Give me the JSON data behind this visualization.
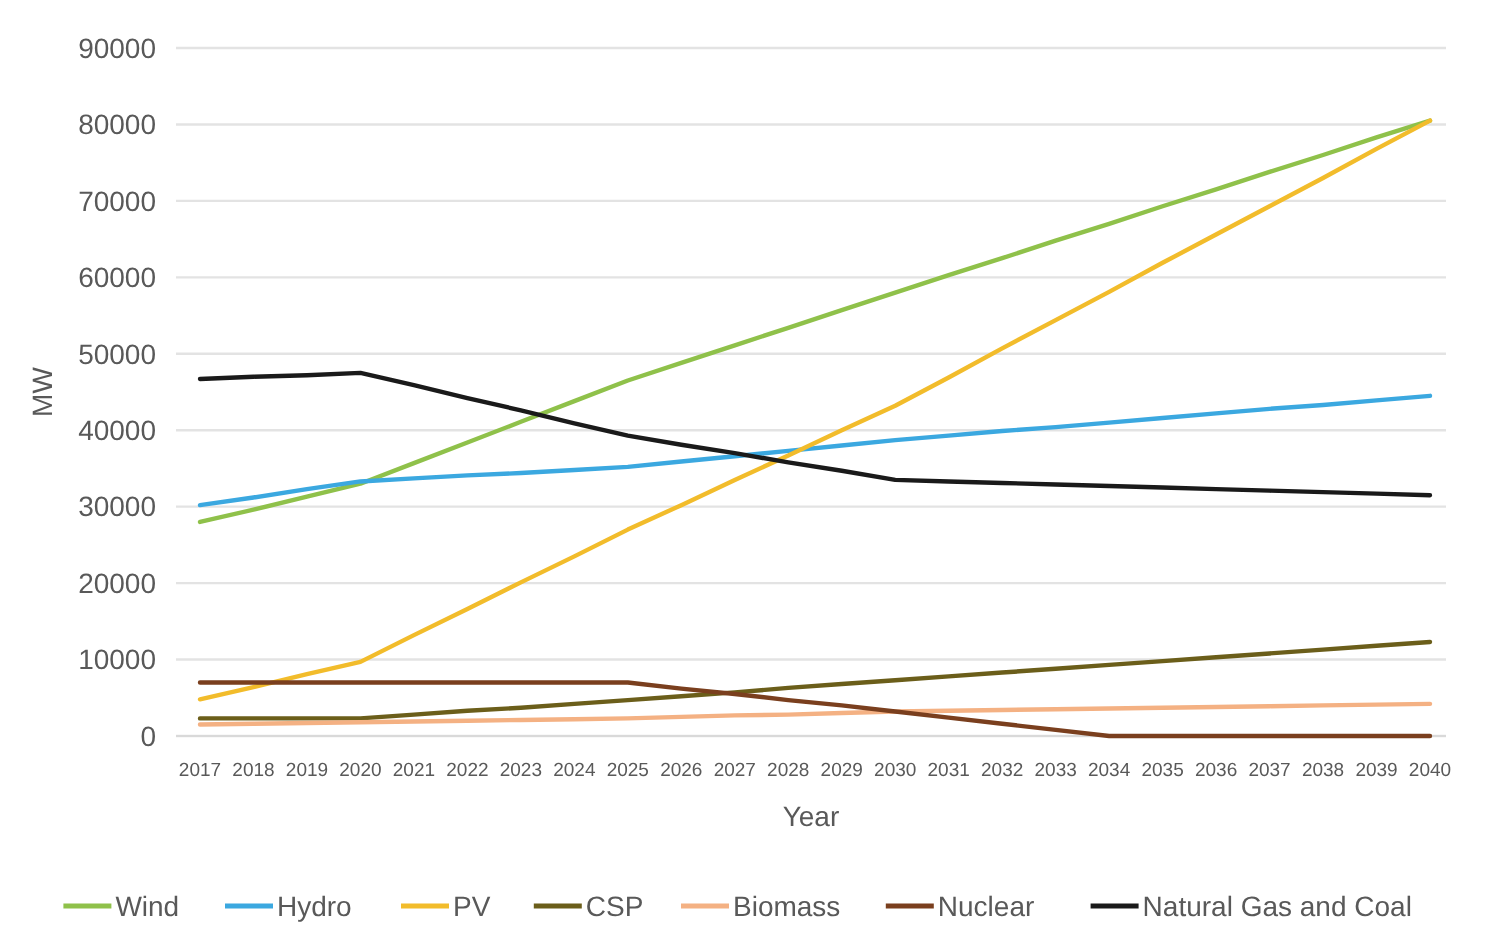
{
  "chart_data": {
    "type": "line",
    "xlabel": "Year",
    "ylabel": "MW",
    "categories": [
      "2017",
      "2018",
      "2019",
      "2020",
      "2021",
      "2022",
      "2023",
      "2024",
      "2025",
      "2026",
      "2027",
      "2028",
      "2029",
      "2030",
      "2031",
      "2032",
      "2033",
      "2034",
      "2035",
      "2036",
      "2037",
      "2038",
      "2039",
      "2040"
    ],
    "ylim": [
      0,
      90000
    ],
    "yticks": [
      0,
      10000,
      20000,
      30000,
      40000,
      50000,
      60000,
      70000,
      80000,
      90000
    ],
    "grid": "y",
    "legend": "bottom",
    "series": [
      {
        "name": "Wind",
        "color": "#8fc14a",
        "values": [
          28000,
          29600,
          31300,
          33000,
          35700,
          38400,
          41100,
          43800,
          46500,
          48800,
          51100,
          53400,
          55700,
          58000,
          60300,
          62500,
          64800,
          67000,
          69300,
          71500,
          73800,
          76000,
          78300,
          80500
        ]
      },
      {
        "name": "Hydro",
        "color": "#3ba8e0",
        "values": [
          30200,
          31200,
          32300,
          33300,
          33700,
          34100,
          34400,
          34800,
          35200,
          35900,
          36600,
          37300,
          38000,
          38700,
          39300,
          39900,
          40400,
          41000,
          41600,
          42200,
          42800,
          43300,
          43900,
          44500
        ]
      },
      {
        "name": "PV",
        "color": "#f2bc2b",
        "values": [
          4800,
          6400,
          8100,
          9700,
          13200,
          16600,
          20100,
          23500,
          27000,
          30200,
          33500,
          36700,
          40000,
          43200,
          46900,
          50700,
          54400,
          58100,
          61900,
          65600,
          69300,
          73000,
          76800,
          80500
        ]
      },
      {
        "name": "CSP",
        "color": "#6b5e1a",
        "values": [
          2300,
          2300,
          2300,
          2300,
          2800,
          3300,
          3700,
          4200,
          4700,
          5200,
          5700,
          6300,
          6800,
          7300,
          7800,
          8300,
          8800,
          9300,
          9800,
          10300,
          10800,
          11300,
          11800,
          12300
        ]
      },
      {
        "name": "Biomass",
        "color": "#f4b183",
        "values": [
          1500,
          1600,
          1700,
          1800,
          1900,
          2000,
          2100,
          2200,
          2300,
          2500,
          2700,
          2800,
          3000,
          3200,
          3300,
          3400,
          3500,
          3600,
          3700,
          3800,
          3900,
          4000,
          4100,
          4200
        ]
      },
      {
        "name": "Nuclear",
        "color": "#7a3f1e",
        "values": [
          7000,
          7000,
          7000,
          7000,
          7000,
          7000,
          7000,
          7000,
          7000,
          6200,
          5500,
          4700,
          4000,
          3200,
          2400,
          1600,
          800,
          0,
          0,
          0,
          0,
          0,
          0,
          0
        ]
      },
      {
        "name": "Natural Gas and Coal",
        "color": "#1a1a1a",
        "values": [
          46700,
          47000,
          47200,
          47500,
          45900,
          44200,
          42600,
          40900,
          39300,
          38100,
          37000,
          35800,
          34700,
          33500,
          33300,
          33100,
          32900,
          32700,
          32500,
          32300,
          32100,
          31900,
          31700,
          31500
        ]
      }
    ]
  }
}
